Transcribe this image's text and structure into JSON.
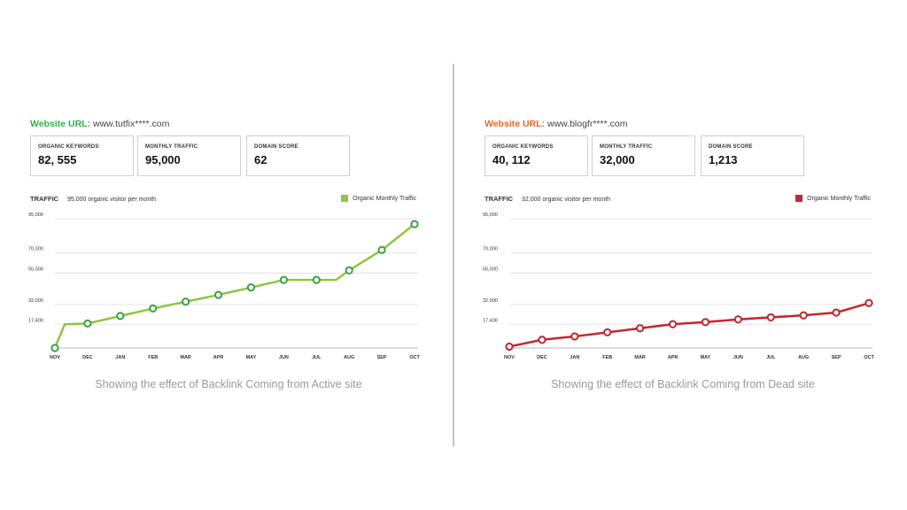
{
  "panels": [
    {
      "url_label": "Website URL:",
      "url_value": "www.tutfix****.com",
      "accent": "#8dc63f",
      "metrics": [
        {
          "label": "ORGANIC KEYWORDS",
          "value": "82, 555"
        },
        {
          "label": "MONTHLY TRAFFIC",
          "value": "95,000"
        },
        {
          "label": "DOMAIN SCORE",
          "value": "62"
        }
      ],
      "traffic_label": "TRAFFIC",
      "traffic_value": "95,000",
      "traffic_desc": "organic visitor per month",
      "caption": "Showing the effect of  Backlink Coming from  Active site"
    },
    {
      "url_label": "Website URL:",
      "url_value": "www.blogfr****.com",
      "accent": "#f26522",
      "metrics": [
        {
          "label": "ORGANIC KEYWORDS",
          "value": "40, 112"
        },
        {
          "label": "MONTHLY TRAFFIC",
          "value": "32,000"
        },
        {
          "label": "DOMAIN SCORE",
          "value": "1,213"
        }
      ],
      "traffic_label": "TRAFFIC",
      "traffic_value": "32,000",
      "traffic_desc": "organic visitor per month",
      "caption": "Showing the effect of  Backlink Coming from Dead site"
    }
  ],
  "chart_data": [
    {
      "type": "line",
      "categories": [
        "NOV",
        "DEC",
        "JAN",
        "FEB",
        "MAR",
        "APR",
        "MAY",
        "JUN",
        "JUL",
        "AUG",
        "SEP",
        "OCT"
      ],
      "yticks": [
        "95,000",
        "70,000",
        "55,000",
        "32,000",
        "17,400"
      ],
      "series": [
        {
          "name": "Organic Monthly Traffic",
          "color": "#8dc63f",
          "marker_color": "#3aa14a",
          "values": [
            0,
            18000,
            23500,
            29000,
            34000,
            39000,
            44500,
            50000,
            50000,
            57000,
            72000,
            91000
          ],
          "extra_vertices": [
            {
              "after": 0,
              "value": 17400
            },
            {
              "after": 8,
              "value": 50000
            }
          ]
        }
      ],
      "ylim": [
        0,
        95000
      ],
      "grid": true,
      "legend": "top-right"
    },
    {
      "type": "line",
      "categories": [
        "NOV",
        "DEC",
        "JAN",
        "FEB",
        "MAR",
        "APR",
        "MAY",
        "JUN",
        "JUL",
        "AUG",
        "SEP",
        "OCT"
      ],
      "yticks": [
        "95,000",
        "70,000",
        "55,000",
        "32,000",
        "17,400"
      ],
      "series": [
        {
          "name": "Organic Monthly Traffic",
          "color": "#c1272d",
          "marker_color": "#c1272d",
          "values": [
            1000,
            6000,
            8500,
            11500,
            14500,
            17500,
            19000,
            21000,
            22500,
            24000,
            26000,
            33000
          ]
        }
      ],
      "ylim": [
        0,
        95000
      ],
      "grid": true,
      "legend": "top-right"
    }
  ]
}
